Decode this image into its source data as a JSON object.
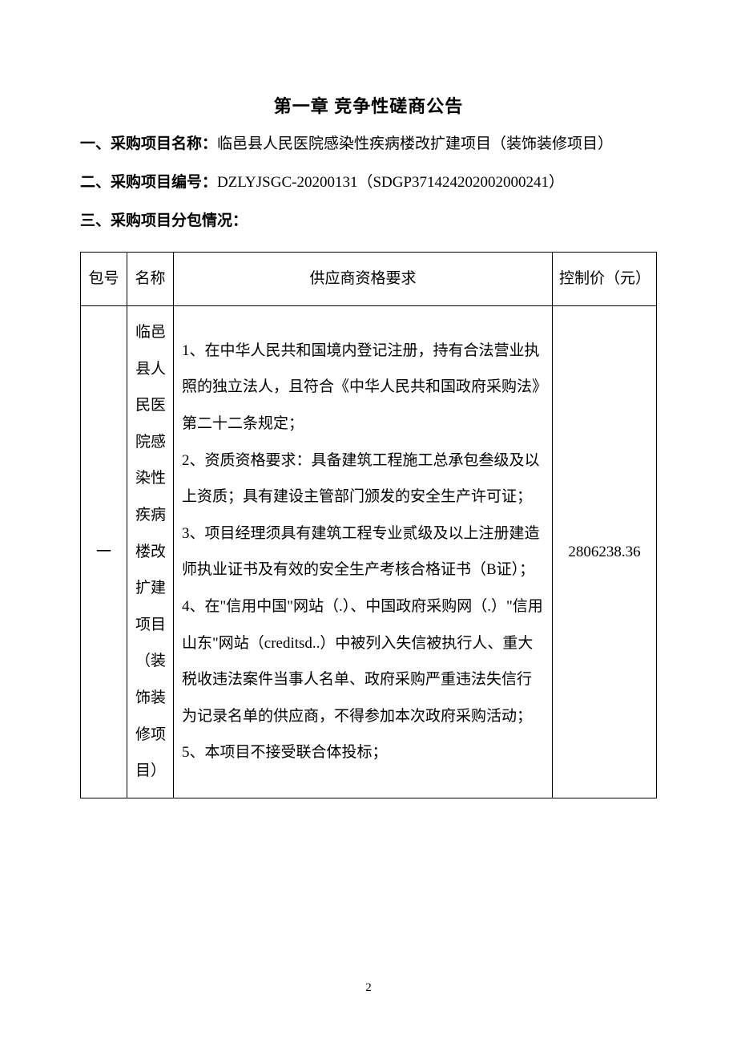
{
  "chapter_title": "第一章 竞争性磋商公告",
  "section1": {
    "label": "一、采购项目名称：",
    "content": "临邑县人民医院感染性疾病楼改扩建项目（装饰装修项目）"
  },
  "section2": {
    "label": "二、采购项目编号：",
    "content": "DZLYJSGC-20200131（SDGP371424202002000241）"
  },
  "section3": {
    "label": "三、采购项目分包情况："
  },
  "table": {
    "headers": {
      "pkg": "包号",
      "name": "名称",
      "req": "供应商资格要求",
      "price": "控制价（元）"
    },
    "row": {
      "pkg": "一",
      "name": "临邑县人民医院感染性疾病楼改扩建项目（装饰装修项目）",
      "req_lines": [
        "1、在中华人民共和国境内登记注册，持有合法营业执照的独立法人，且符合《中华人民共和国政府采购法》第二十二条规定；",
        "2、资质资格要求：具备建筑工程施工总承包叁级及以上资质；具有建设主管部门颁发的安全生产许可证；",
        "3、项目经理须具有建筑工程专业贰级及以上注册建造师执业证书及有效的安全生产考核合格证书（B证）；",
        "4、在\"信用中国\"网站（.）、中国政府采购网（.）\"信用山东\"网站（creditsd..）中被列入失信被执行人、重大税收违法案件当事人名单、政府采购严重违法失信行为记录名单的供应商，不得参加本次政府采购活动；",
        "5、本项目不接受联合体投标；"
      ],
      "price": "2806238.36"
    }
  },
  "page_number": "2",
  "colors": {
    "background": "#ffffff",
    "text": "#000000",
    "border": "#000000"
  },
  "typography": {
    "title_fontsize": 22,
    "body_fontsize": 19,
    "page_fontsize": 15,
    "font_family": "SimSun"
  }
}
